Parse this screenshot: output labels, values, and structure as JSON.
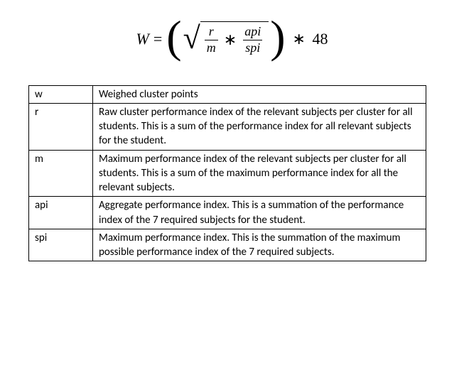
{
  "formula": {
    "lhs": "W",
    "eq": "=",
    "frac1_num": "r",
    "frac1_den": "m",
    "star": "∗",
    "frac2_num": "api",
    "frac2_den": "spi",
    "tail_star": "∗",
    "tail_const": "48"
  },
  "table": {
    "rows": [
      {
        "symbol": "w",
        "definition": "Weighed cluster points"
      },
      {
        "symbol": "r",
        "definition": "Raw cluster performance index of the relevant subjects per cluster for all students. This is a sum of the performance index for all relevant subjects for the student."
      },
      {
        "symbol": "m",
        "definition": "Maximum performance index of the relevant subjects per cluster for all students. This is a sum of the maximum performance index for all the relevant subjects."
      },
      {
        "symbol": "api",
        "definition": "Aggregate performance index. This is a summation of the performance index of the 7 required subjects for the student."
      },
      {
        "symbol": "spi",
        "definition": "Maximum performance index. This is the summation of the maximum possible performance index of the 7 required subjects."
      }
    ]
  }
}
